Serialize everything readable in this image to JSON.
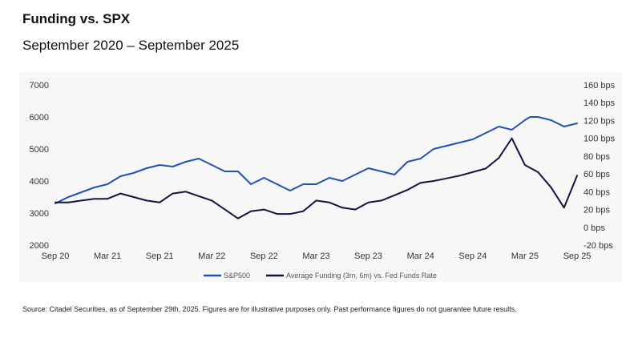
{
  "header": {
    "title": "Funding vs. SPX",
    "subtitle": "September 2020 – September 2025"
  },
  "footnote": "Source:  Citadel Securities, as of September 29th, 2025. Figures are for illustrative purposes only. Past performance figures do not guarantee future results.",
  "chart_data": {
    "type": "line",
    "title": "Funding vs. SPX",
    "subtitle": "September 2020 – September 2025",
    "x_tick_labels": [
      "Sep 20",
      "Mar 21",
      "Sep 21",
      "Mar 22",
      "Sep 22",
      "Mar 23",
      "Sep 23",
      "Mar 24",
      "Sep 24",
      "Mar 25",
      "Sep 25"
    ],
    "y_left": {
      "ticks": [
        "7000",
        "6000",
        "5000",
        "4000",
        "3000",
        "2000"
      ],
      "range": [
        2000,
        7000
      ]
    },
    "y_right": {
      "ticks": [
        "160 bps",
        "140 bps",
        "120 bps",
        "100 bps",
        "80 bps",
        "60 bps",
        "40 bps",
        "20 bps",
        "0 bps",
        "-20 bps"
      ],
      "range": [
        -20,
        160
      ]
    },
    "grid": false,
    "legend_position": "bottom",
    "series": [
      {
        "name": "S&P500",
        "axis": "left",
        "color": "#2350b4",
        "x": [
          0,
          0.1,
          0.25,
          0.5,
          0.75,
          1,
          1.25,
          1.5,
          1.75,
          2,
          2.25,
          2.5,
          2.75,
          3,
          3.25,
          3.5,
          3.75,
          4,
          4.25,
          4.5,
          4.75,
          5,
          5.25,
          5.5,
          5.75,
          6,
          6.25,
          6.5,
          6.75,
          7,
          7.25,
          7.5,
          7.75,
          8,
          8.25,
          8.5,
          8.75,
          9,
          9.1,
          9.25,
          9.5,
          9.75,
          10
        ],
        "values": [
          3300,
          3380,
          3500,
          3650,
          3800,
          3900,
          4150,
          4250,
          4400,
          4500,
          4450,
          4600,
          4700,
          4500,
          4300,
          4300,
          3900,
          4100,
          3900,
          3700,
          3900,
          3900,
          4100,
          4000,
          4200,
          4400,
          4300,
          4200,
          4600,
          4700,
          5000,
          5100,
          5200,
          5300,
          5500,
          5700,
          5600,
          5900,
          6000,
          6000,
          5900,
          5700,
          5800
        ]
      },
      {
        "name": "Average Funding (3m, 6m) vs. Fed Funds Rate",
        "axis": "right",
        "color": "#0d1640",
        "x": [
          0,
          0.25,
          0.5,
          0.75,
          1,
          1.25,
          1.5,
          1.75,
          2,
          2.25,
          2.5,
          2.75,
          3,
          3.25,
          3.5,
          3.75,
          4,
          4.25,
          4.5,
          4.75,
          5,
          5.25,
          5.5,
          5.75,
          6,
          6.25,
          6.5,
          6.75,
          7,
          7.25,
          7.5,
          7.75,
          8,
          8.25,
          8.5,
          8.75,
          9,
          9.25,
          9.5,
          9.75,
          10
        ],
        "values": [
          28,
          28,
          30,
          32,
          32,
          38,
          34,
          30,
          28,
          38,
          40,
          35,
          30,
          20,
          10,
          18,
          20,
          15,
          15,
          18,
          30,
          28,
          22,
          20,
          28,
          30,
          36,
          42,
          50,
          52,
          55,
          58,
          62,
          66,
          78,
          100,
          70,
          62,
          45,
          22,
          58
        ]
      }
    ]
  }
}
